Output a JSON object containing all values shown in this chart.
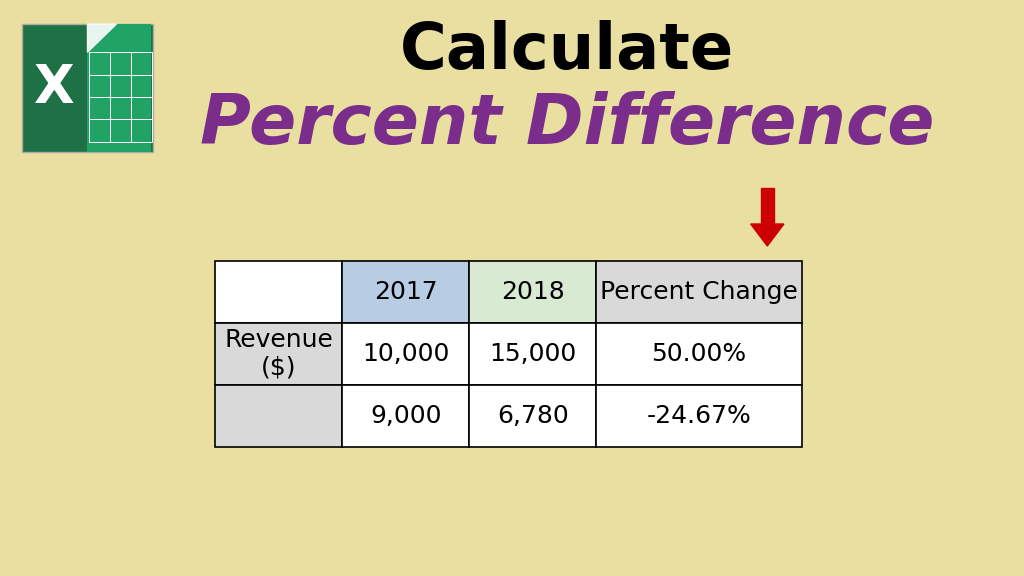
{
  "title1": "Calculate",
  "title2": "Percent Difference",
  "background_color": "#e8dfa0",
  "title1_color": "#000000",
  "title2_color": "#7b2d8b",
  "table_header_row": [
    "",
    "2017",
    "2018",
    "Percent Change"
  ],
  "table_data": [
    [
      "Revenue\n($)",
      "10,000",
      "15,000",
      "50.00%"
    ],
    [
      "",
      "9,000",
      "6,780",
      "-24.67%"
    ]
  ],
  "col_header_colors": [
    "#ffffff",
    "#b8cce4",
    "#d9ead3",
    "#d9d9d9"
  ],
  "row_label_color": "#d9d9d9",
  "cell_color": "#ffffff",
  "border_color": "#000000",
  "arrow_color": "#cc0000",
  "excel_green": "#1e7145",
  "excel_light_green": "#21a366"
}
